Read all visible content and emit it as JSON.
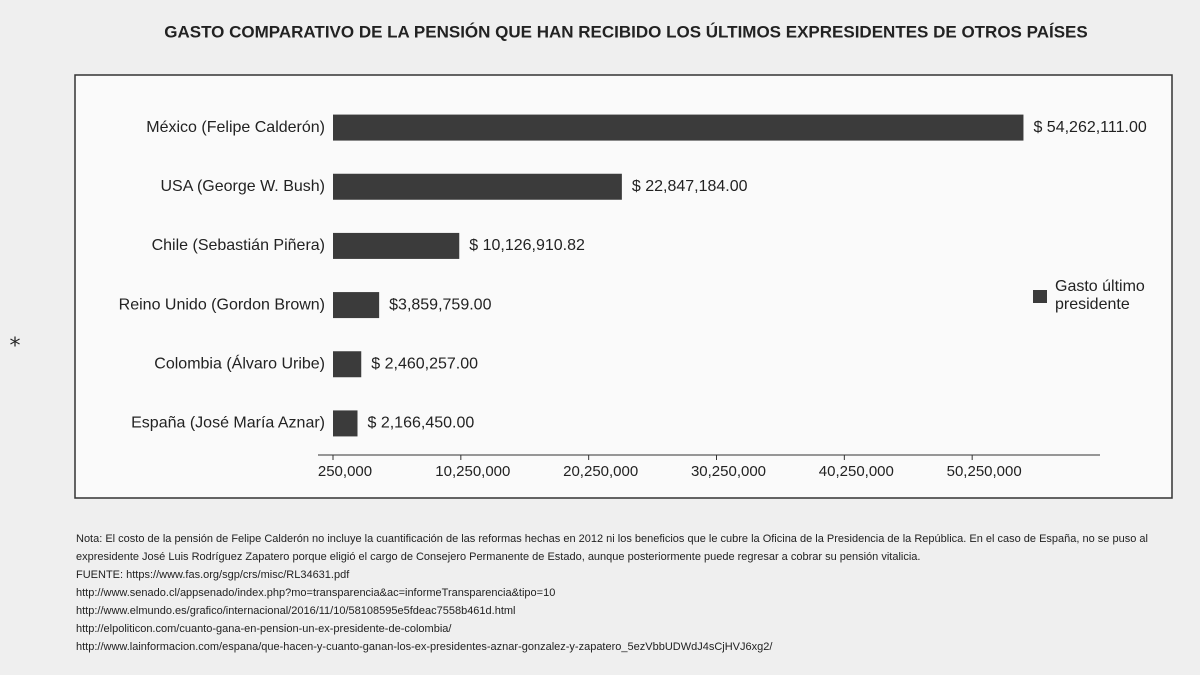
{
  "chart_data": {
    "type": "bar",
    "orientation": "horizontal",
    "title": "GASTO COMPARATIVO DE LA PENSIÓN QUE HAN RECIBIDO LOS ÚLTIMOS EXPRESIDENTES DE OTROS PAÍSES",
    "categories": [
      "México (Felipe Calderón)",
      "USA (George W. Bush)",
      "Chile (Sebastián Piñera)",
      "Reino Unido (Gordon Brown)",
      "Colombia (Álvaro Uribe)",
      "España (José María Aznar)"
    ],
    "series": [
      {
        "name": "Gasto último presidente",
        "color": "#3b3b3b",
        "values": [
          54262111.0,
          22847184.0,
          10126910.82,
          3859759.0,
          2460257.0,
          2166450.0
        ],
        "value_labels": [
          "$ 54,262,111.00",
          "$ 22,847,184.00",
          "$ 10,126,910.82",
          "$3,859,759.00",
          "$ 2,460,257.00",
          "$ 2,166,450.00"
        ]
      }
    ],
    "xlim": [
      250000,
      60250000
    ],
    "xticks": [
      {
        "value": 250000,
        "label": "250,000"
      },
      {
        "value": 10250000,
        "label": "10,250,000"
      },
      {
        "value": 20250000,
        "label": "20,250,000"
      },
      {
        "value": 30250000,
        "label": "30,250,000"
      },
      {
        "value": 40250000,
        "label": "40,250,000"
      },
      {
        "value": 50250000,
        "label": "50,250,000"
      }
    ],
    "legend": "right",
    "side_symbol": "⁎",
    "notes": [
      "Nota: El costo de la pensión de Felipe Calderón no incluye la cuantificación de las reformas hechas en 2012 ni los beneficios que le cubre la Oficina de la Presidencia de la República. En el caso de España, no se puso al expresidente José Luis Rodríguez Zapatero porque eligió el cargo de Consejero Permanente de Estado, aunque posteriormente puede regresar a cobrar su pensión vitalicia.",
      "FUENTE: https://www.fas.org/sgp/crs/misc/RL34631.pdf",
      "http://www.senado.cl/appsenado/index.php?mo=transparencia&ac=informeTransparencia&tipo=10",
      "http://www.elmundo.es/grafico/internacional/2016/11/10/58108595e5fdeac7558b461d.html",
      "http://elpoliticon.com/cuanto-gana-en-pension-un-ex-presidente-de-colombia/",
      "http://www.lainformacion.com/espana/que-hacen-y-cuanto-ganan-los-ex-presidentes-aznar-gonzalez-y-zapatero_5ezVbbUDWdJ4sCjHVJ6xg2/"
    ]
  }
}
